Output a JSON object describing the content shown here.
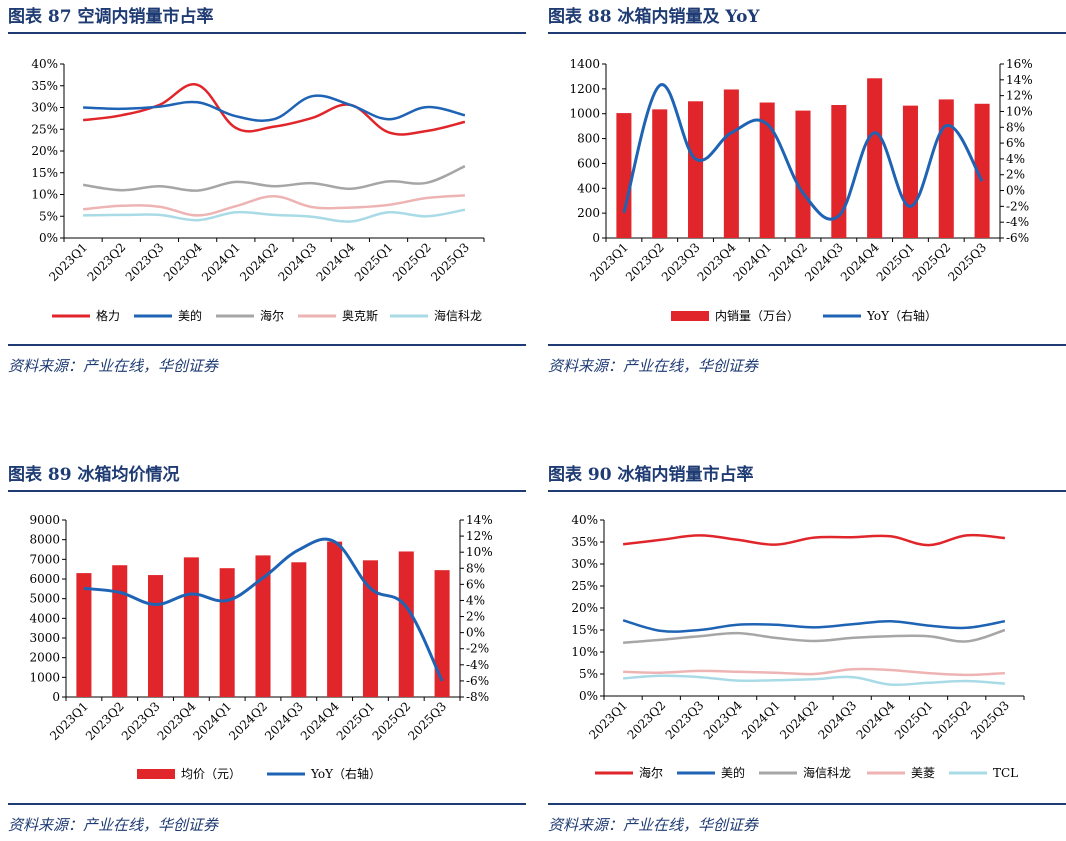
{
  "source_text": "资料来源：产业在线，华创证券",
  "chart_data": [
    {
      "id": "c87",
      "type": "line",
      "title": "图表 87 空调内销量市占率",
      "categories": [
        "2023Q1",
        "2023Q2",
        "2023Q3",
        "2023Q4",
        "2024Q1",
        "2024Q2",
        "2024Q3",
        "2024Q4",
        "2025Q1",
        "2025Q2",
        "2025Q3"
      ],
      "ylim": [
        0,
        40
      ],
      "yticks": [
        "0%",
        "5%",
        "10%",
        "15%",
        "20%",
        "25%",
        "30%",
        "35%",
        "40%"
      ],
      "grid": false,
      "legend_position": "bottom",
      "series": [
        {
          "name": "格力",
          "color": "#e0262b",
          "values": [
            27.1,
            28.2,
            30.6,
            35.2,
            25.3,
            25.6,
            27.6,
            30.6,
            24.3,
            24.6,
            26.7
          ]
        },
        {
          "name": "美的",
          "color": "#1e63b4",
          "values": [
            30.0,
            29.7,
            30.2,
            31.2,
            28.0,
            27.3,
            32.6,
            30.6,
            27.3,
            30.1,
            28.2
          ]
        },
        {
          "name": "海尔",
          "color": "#a6a6a6",
          "values": [
            12.2,
            11.0,
            11.9,
            10.9,
            12.9,
            11.9,
            12.6,
            11.3,
            13.0,
            12.7,
            16.5
          ]
        },
        {
          "name": "奥克斯",
          "color": "#eeb4b4",
          "values": [
            6.6,
            7.4,
            7.2,
            5.2,
            7.3,
            9.6,
            7.1,
            7.0,
            7.6,
            9.2,
            9.8
          ]
        },
        {
          "name": "海信科龙",
          "color": "#a9dbe7",
          "values": [
            5.2,
            5.3,
            5.3,
            4.1,
            5.9,
            5.3,
            4.9,
            3.8,
            5.9,
            5.0,
            6.5
          ]
        }
      ]
    },
    {
      "id": "c88",
      "type": "bar",
      "title": "图表 88 冰箱内销量及 YoY",
      "categories": [
        "2023Q1",
        "2023Q2",
        "2023Q3",
        "2023Q4",
        "2024Q1",
        "2024Q2",
        "2024Q3",
        "2024Q4",
        "2025Q1",
        "2025Q2",
        "2025Q3"
      ],
      "ylim": [
        0,
        1400
      ],
      "yticks": [
        "0",
        "200",
        "400",
        "600",
        "800",
        "1000",
        "1200",
        "1400"
      ],
      "y2lim": [
        -6,
        16
      ],
      "y2ticks": [
        "-6%",
        "-4%",
        "-2%",
        "0%",
        "2%",
        "4%",
        "6%",
        "8%",
        "10%",
        "12%",
        "14%",
        "16%"
      ],
      "grid": false,
      "legend_position": "bottom",
      "series": [
        {
          "name": "内销量（万台）",
          "kind": "bar",
          "axis": "left",
          "color": "#e0262b",
          "values": [
            1005,
            1035,
            1100,
            1195,
            1090,
            1025,
            1070,
            1285,
            1065,
            1115,
            1080
          ]
        },
        {
          "name": "YoY（右轴）",
          "kind": "line",
          "axis": "right",
          "color": "#1e63b4",
          "values": [
            -2.8,
            13.3,
            4.0,
            7.3,
            8.4,
            -0.3,
            -3.2,
            7.3,
            -2.0,
            8.2,
            1.2
          ]
        }
      ]
    },
    {
      "id": "c89",
      "type": "bar",
      "title": "图表 89 冰箱均价情况",
      "categories": [
        "2023Q1",
        "2023Q2",
        "2023Q3",
        "2023Q4",
        "2024Q1",
        "2024Q2",
        "2024Q3",
        "2024Q4",
        "2025Q1",
        "2025Q2",
        "2025Q3"
      ],
      "ylim": [
        0,
        9000
      ],
      "yticks": [
        "0",
        "1000",
        "2000",
        "3000",
        "4000",
        "5000",
        "6000",
        "7000",
        "8000",
        "9000"
      ],
      "y2lim": [
        -8,
        14
      ],
      "y2ticks": [
        "-8%",
        "-6%",
        "-4%",
        "-2%",
        "0%",
        "2%",
        "4%",
        "6%",
        "8%",
        "10%",
        "12%",
        "14%"
      ],
      "grid": false,
      "legend_position": "bottom",
      "series": [
        {
          "name": "均价（元）",
          "kind": "bar",
          "axis": "left",
          "color": "#e0262b",
          "values": [
            6300,
            6700,
            6200,
            7100,
            6550,
            7200,
            6850,
            7900,
            6950,
            7400,
            6450
          ]
        },
        {
          "name": "YoY（右轴）",
          "kind": "line",
          "axis": "right",
          "color": "#1e63b4",
          "values": [
            5.5,
            5.0,
            3.5,
            4.8,
            4.0,
            6.8,
            10.3,
            11.3,
            5.5,
            3.2,
            -6.0
          ]
        }
      ]
    },
    {
      "id": "c90",
      "type": "line",
      "title": "图表 90 冰箱内销量市占率",
      "categories": [
        "2023Q1",
        "2023Q2",
        "2023Q3",
        "2023Q4",
        "2024Q1",
        "2024Q2",
        "2024Q3",
        "2024Q4",
        "2025Q1",
        "2025Q2",
        "2025Q3"
      ],
      "ylim": [
        0,
        40
      ],
      "yticks": [
        "0%",
        "5%",
        "10%",
        "15%",
        "20%",
        "25%",
        "30%",
        "35%",
        "40%"
      ],
      "grid": false,
      "legend_position": "bottom",
      "series": [
        {
          "name": "海尔",
          "color": "#e0262b",
          "values": [
            34.5,
            35.5,
            36.5,
            35.5,
            34.4,
            36.0,
            36.1,
            36.3,
            34.3,
            36.5,
            35.9
          ]
        },
        {
          "name": "美的",
          "color": "#1e63b4",
          "values": [
            17.2,
            14.8,
            15.0,
            16.2,
            16.2,
            15.6,
            16.3,
            17.0,
            16.0,
            15.5,
            17.0
          ]
        },
        {
          "name": "海信科龙",
          "color": "#a6a6a6",
          "values": [
            12.1,
            12.8,
            13.6,
            14.3,
            13.2,
            12.5,
            13.2,
            13.6,
            13.6,
            12.4,
            15.0
          ]
        },
        {
          "name": "美菱",
          "color": "#eeb4b4",
          "values": [
            5.5,
            5.3,
            5.7,
            5.5,
            5.3,
            5.0,
            6.1,
            5.9,
            5.2,
            4.8,
            5.2
          ]
        },
        {
          "name": "TCL",
          "color": "#a9dbe7",
          "values": [
            4.0,
            4.6,
            4.3,
            3.5,
            3.6,
            3.8,
            4.3,
            2.6,
            3.0,
            3.4,
            2.8
          ]
        }
      ]
    }
  ]
}
